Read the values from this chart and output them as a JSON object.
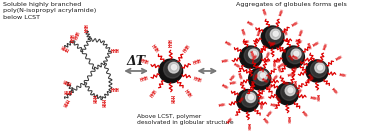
{
  "bg_color": "#ffffff",
  "text_color": "#1a1a1a",
  "red_color": "#dd0000",
  "polymer_color": "#3a3a3a",
  "globule_dark": "#111111",
  "globule_mid": "#555555",
  "globule_light": "#dddddd",
  "globule_highlight": "#f0f0f0",
  "arrow_color": "#777777",
  "label_top_left": "Soluble highly branched\npoly(N-isopropyl acrylamide)\nbelow LCST",
  "label_top_right": "Aggregates of globules forms gels",
  "label_bottom_center": "Above LCST, polymer\ndesolvated in globular structure",
  "arrow_label": "ΔT",
  "figsize": [
    3.77,
    1.39
  ],
  "dpi": 100
}
